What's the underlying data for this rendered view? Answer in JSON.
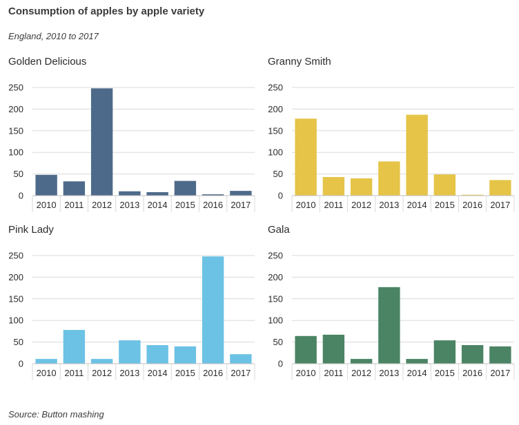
{
  "header": {
    "title": "Consumption of apples by apple variety",
    "subtitle": "England, 2010 to 2017"
  },
  "footer": {
    "source": "Source: Button mashing"
  },
  "chart_data": [
    {
      "type": "bar",
      "title": "Golden Delicious",
      "categories": [
        "2010",
        "2011",
        "2012",
        "2013",
        "2014",
        "2015",
        "2016",
        "2017"
      ],
      "values": [
        48,
        33,
        248,
        10,
        8,
        34,
        3,
        11
      ],
      "ylim": [
        0,
        250
      ],
      "yticks": [
        0,
        50,
        100,
        150,
        200,
        250
      ],
      "color": "#4e6a8a",
      "grid": true
    },
    {
      "type": "bar",
      "title": "Granny Smith",
      "categories": [
        "2010",
        "2011",
        "2012",
        "2013",
        "2014",
        "2015",
        "2016",
        "2017"
      ],
      "values": [
        178,
        43,
        40,
        79,
        187,
        49,
        2,
        36
      ],
      "ylim": [
        0,
        250
      ],
      "yticks": [
        0,
        50,
        100,
        150,
        200,
        250
      ],
      "color": "#e5c448",
      "grid": true
    },
    {
      "type": "bar",
      "title": "Pink Lady",
      "categories": [
        "2010",
        "2011",
        "2012",
        "2013",
        "2014",
        "2015",
        "2016",
        "2017"
      ],
      "values": [
        11,
        78,
        11,
        54,
        43,
        40,
        248,
        22
      ],
      "ylim": [
        0,
        250
      ],
      "yticks": [
        0,
        50,
        100,
        150,
        200,
        250
      ],
      "color": "#6cc2e5",
      "grid": true
    },
    {
      "type": "bar",
      "title": "Gala",
      "categories": [
        "2010",
        "2011",
        "2012",
        "2013",
        "2014",
        "2015",
        "2016",
        "2017"
      ],
      "values": [
        64,
        67,
        11,
        177,
        11,
        54,
        43,
        40
      ],
      "ylim": [
        0,
        250
      ],
      "yticks": [
        0,
        50,
        100,
        150,
        200,
        250
      ],
      "color": "#4b8464",
      "grid": true
    }
  ]
}
